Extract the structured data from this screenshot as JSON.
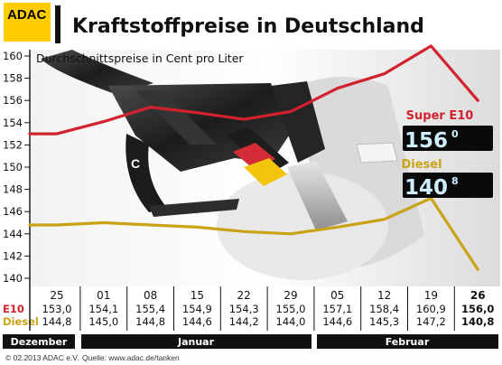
{
  "logo": "ADAC",
  "chart_data": {
    "type": "line",
    "title": "Kraftstoffpreise in Deutschland",
    "subtitle": "Durchschnittspreise in Cent pro Liter",
    "ylim": [
      140,
      160
    ],
    "yticks": [
      140,
      142,
      144,
      146,
      148,
      150,
      152,
      154,
      156,
      158,
      160
    ],
    "categories": [
      "25",
      "01",
      "08",
      "15",
      "22",
      "29",
      "05",
      "12",
      "19",
      "26"
    ],
    "series": [
      {
        "name": "Super E10",
        "row_label": "E10",
        "color": "#d3222d",
        "values": [
          153.0,
          154.1,
          155.4,
          154.9,
          154.3,
          155.0,
          157.1,
          158.4,
          160.9,
          156.0
        ],
        "labels": [
          "153,0",
          "154,1",
          "155,4",
          "154,9",
          "154,3",
          "155,0",
          "157,1",
          "158,4",
          "160,9",
          "156,0"
        ],
        "display": "156",
        "display_sup": "0"
      },
      {
        "name": "Diesel",
        "row_label": "Diesel",
        "color": "#c9a216",
        "values": [
          144.8,
          145.0,
          144.8,
          144.6,
          144.2,
          144.0,
          144.6,
          145.3,
          147.2,
          140.8
        ],
        "labels": [
          "144,8",
          "145,0",
          "144,8",
          "144,6",
          "144,2",
          "144,0",
          "144,6",
          "145,3",
          "147,2",
          "140,8"
        ],
        "display": "140",
        "display_sup": "8"
      }
    ],
    "months": [
      "Dezember",
      "Januar",
      "Februar"
    ],
    "grid": false
  },
  "footer": {
    "copyright": "© 02.2013  ADAC e.V.",
    "source": "Quelle: www.adac.de/tanken"
  }
}
